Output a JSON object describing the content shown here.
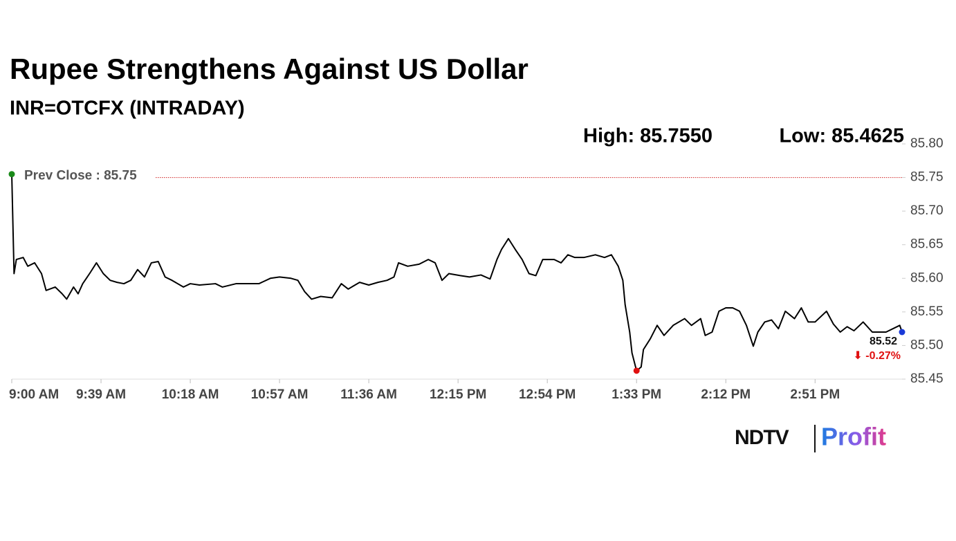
{
  "chart_data": {
    "type": "line",
    "title": "Rupee Strengthens Against US Dollar",
    "subtitle": "INR=OTCFX (INTRADAY)",
    "high_label": "High: 85.7550",
    "low_label": "Low: 85.4625",
    "prev_close": {
      "value": 85.75,
      "label": "Prev Close : 85.75"
    },
    "last_label": "85.52",
    "change_label": "⬇ -0.27%",
    "brand": {
      "left": "NDTV",
      "right": "Profit"
    },
    "x": [
      "9:00 AM",
      "9:01 AM",
      "9:02 AM",
      "9:05 AM",
      "9:07 AM",
      "9:10 AM",
      "9:13 AM",
      "9:15 AM",
      "9:19 AM",
      "9:22 AM",
      "9:24 AM",
      "9:27 AM",
      "9:29 AM",
      "9:31 AM",
      "9:34 AM",
      "9:37 AM",
      "9:40 AM",
      "9:43 AM",
      "9:46 AM",
      "9:49 AM",
      "9:52 AM",
      "9:55 AM",
      "9:58 AM",
      "10:01 AM",
      "10:04 AM",
      "10:07 AM",
      "10:10 AM",
      "10:15 AM",
      "10:18 AM",
      "10:22 AM",
      "10:29 AM",
      "10:32 AM",
      "10:38 AM",
      "10:44 AM",
      "10:48 AM",
      "10:53 AM",
      "10:57 AM",
      "11:02 AM",
      "11:05 AM",
      "11:08 AM",
      "11:11 AM",
      "11:15 AM",
      "11:20 AM",
      "11:24 AM",
      "11:27 AM",
      "11:32 AM",
      "11:36 AM",
      "11:40 AM",
      "11:44 AM",
      "11:47 AM",
      "11:49 AM",
      "11:53 AM",
      "11:58 AM",
      "12:02 PM",
      "12:05 PM",
      "12:08 PM",
      "12:11 PM",
      "12:16 PM",
      "12:20 PM",
      "12:25 PM",
      "12:29 PM",
      "12:32 PM",
      "12:34 PM",
      "12:37 PM",
      "12:40 PM",
      "12:43 PM",
      "12:46 PM",
      "12:49 PM",
      "12:52 PM",
      "12:57 PM",
      "1:00 PM",
      "1:03 PM",
      "1:06 PM",
      "1:10 PM",
      "1:15 PM",
      "1:19 PM",
      "1:22 PM",
      "1:25 PM",
      "1:27 PM",
      "1:28 PM",
      "1:30 PM",
      "1:31 PM",
      "1:33 PM",
      "1:35 PM",
      "1:36 PM",
      "1:39 PM",
      "1:42 PM",
      "1:45 PM",
      "1:49 PM",
      "1:54 PM",
      "1:57 PM",
      "2:01 PM",
      "2:03 PM",
      "2:06 PM",
      "2:09 PM",
      "2:12 PM",
      "2:15 PM",
      "2:18 PM",
      "2:21 PM",
      "2:24 PM",
      "2:26 PM",
      "2:29 PM",
      "2:32 PM",
      "2:35 PM",
      "2:38 PM",
      "2:42 PM",
      "2:45 PM",
      "2:48 PM",
      "2:51 PM",
      "2:56 PM",
      "2:59 PM",
      "3:02 PM",
      "3:05 PM",
      "3:08 PM",
      "3:12 PM",
      "3:16 PM",
      "3:22 PM",
      "3:28 PM",
      "3:29 PM"
    ],
    "series": [
      {
        "color": "#000000",
        "values": [
          85.755,
          85.607,
          85.628,
          85.631,
          85.618,
          85.623,
          85.607,
          85.582,
          85.587,
          85.577,
          85.569,
          85.587,
          85.577,
          85.592,
          85.607,
          85.623,
          85.607,
          85.597,
          85.594,
          85.592,
          85.597,
          85.613,
          85.602,
          85.623,
          85.625,
          85.602,
          85.597,
          85.587,
          85.592,
          85.59,
          85.592,
          85.587,
          85.592,
          85.592,
          85.592,
          85.6,
          85.602,
          85.6,
          85.597,
          85.58,
          85.569,
          85.573,
          85.571,
          85.592,
          85.584,
          85.594,
          85.59,
          85.594,
          85.597,
          85.602,
          85.623,
          85.618,
          85.621,
          85.628,
          85.623,
          85.597,
          85.607,
          85.604,
          85.602,
          85.605,
          85.599,
          85.628,
          85.643,
          85.659,
          85.643,
          85.628,
          85.607,
          85.604,
          85.628,
          85.628,
          85.623,
          85.635,
          85.631,
          85.631,
          85.635,
          85.631,
          85.635,
          85.618,
          85.597,
          85.561,
          85.52,
          85.489,
          85.4625,
          85.468,
          85.494,
          85.51,
          85.53,
          85.515,
          85.53,
          85.54,
          85.53,
          85.54,
          85.515,
          85.52,
          85.551,
          85.556,
          85.556,
          85.551,
          85.53,
          85.499,
          85.52,
          85.535,
          85.538,
          85.525,
          85.551,
          85.54,
          85.556,
          85.535,
          85.535,
          85.551,
          85.532,
          85.52,
          85.528,
          85.522,
          85.535,
          85.52,
          85.52,
          85.53,
          85.52
        ]
      }
    ],
    "start_color": "#1a8a1a",
    "low_color": "#e01010",
    "end_color": "#1a3ad8",
    "prev_close_color": "#d02020",
    "xlim": [
      "9:00 AM",
      "3:29 PM"
    ],
    "xticks": [
      "9:00 AM",
      "9:39 AM",
      "10:18 AM",
      "10:57 AM",
      "11:36 AM",
      "12:15 PM",
      "12:54 PM",
      "1:33 PM",
      "2:12 PM",
      "2:51 PM"
    ],
    "ylim": [
      85.45,
      85.8
    ],
    "yticks": [
      85.45,
      {
        "value": 85.5,
        "label": "85.50"
      },
      85.55,
      {
        "value": 85.6,
        "label": "85.60"
      },
      85.65,
      {
        "value": 85.7,
        "label": "85.70"
      },
      85.75,
      {
        "value": 85.8,
        "label": "85.80"
      }
    ],
    "grid": false
  }
}
